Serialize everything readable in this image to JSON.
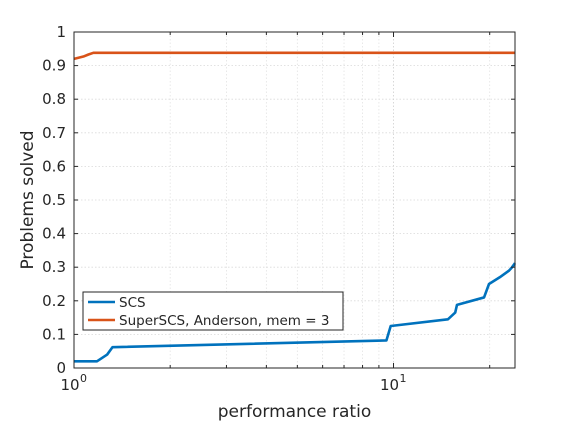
{
  "chart_data": {
    "type": "line",
    "title": "",
    "xlabel": "performance ratio",
    "ylabel": "Problems solved",
    "xscale": "log",
    "xlim": [
      1,
      24
    ],
    "ylim": [
      0,
      1
    ],
    "grid": true,
    "legend_position": "bottom-left",
    "x_ticks": [
      {
        "value": 1,
        "base": "10",
        "exp": "0"
      },
      {
        "value": 10,
        "base": "10",
        "exp": "1"
      }
    ],
    "y_ticks": [
      {
        "value": 0,
        "label": "0"
      },
      {
        "value": 0.1,
        "label": "0.1"
      },
      {
        "value": 0.2,
        "label": "0.2"
      },
      {
        "value": 0.3,
        "label": "0.3"
      },
      {
        "value": 0.4,
        "label": "0.4"
      },
      {
        "value": 0.5,
        "label": "0.5"
      },
      {
        "value": 0.6,
        "label": "0.6"
      },
      {
        "value": 0.7,
        "label": "0.7"
      },
      {
        "value": 0.8,
        "label": "0.8"
      },
      {
        "value": 0.9,
        "label": "0.9"
      },
      {
        "value": 1,
        "label": "1"
      }
    ],
    "series": [
      {
        "name": "SCS",
        "color": "#0072bd",
        "x": [
          1.0,
          1.18,
          1.27,
          1.32,
          9.5,
          9.8,
          14.8,
          15.6,
          15.8,
          19.2,
          19.9,
          21.5,
          23.0,
          23.5,
          24.0
        ],
        "y": [
          0.02,
          0.02,
          0.04,
          0.062,
          0.082,
          0.125,
          0.145,
          0.165,
          0.188,
          0.21,
          0.25,
          0.27,
          0.29,
          0.3,
          0.312
        ]
      },
      {
        "name": "SuperSCS, Anderson, mem = 3",
        "color": "#d95319",
        "x": [
          1.0,
          1.07,
          1.11,
          1.15,
          24.0
        ],
        "y": [
          0.92,
          0.927,
          0.933,
          0.938,
          0.938
        ]
      }
    ]
  }
}
